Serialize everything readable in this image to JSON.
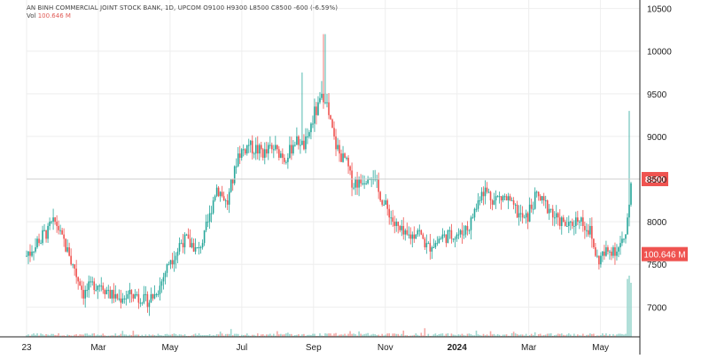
{
  "legend": {
    "title": "AN BINH COMMERCIAL JOINT STOCK BANK, 1D, UPCOM  O9100  H9300  L8500  C8500  -600 (-6.59%)",
    "volume_label": "Vol",
    "volume_value": "100.646 M"
  },
  "colors": {
    "up": "#26a69a",
    "down": "#ef5350",
    "grid": "#eeeeee",
    "price_badge": "#ef5350",
    "axis_text": "#222222"
  },
  "chart_data": {
    "type": "candlestick",
    "title": "AN BINH COMMERCIAL JOINT STOCK BANK, 1D, UPCOM",
    "ylim": [
      6650,
      10600
    ],
    "yticks": [
      7000,
      7500,
      8000,
      8500,
      9000,
      9500,
      10000,
      10500
    ],
    "ytick_labels": [
      "7000",
      "7500",
      "8000",
      "8500",
      "9000",
      "9500",
      "10000",
      "10500"
    ],
    "xticks": [
      {
        "label": "23",
        "month": 0
      },
      {
        "label": "Mar",
        "month": 2
      },
      {
        "label": "May",
        "month": 4
      },
      {
        "label": "Jul",
        "month": 6
      },
      {
        "label": "Sep",
        "month": 8
      },
      {
        "label": "Nov",
        "month": 10
      },
      {
        "label": "2024",
        "month": 12
      },
      {
        "label": "Mar",
        "month": 14
      },
      {
        "label": "May",
        "month": 16
      }
    ],
    "x_end_month": 16.85,
    "last_price": 8500,
    "last_price_label": "8500",
    "volume_badge_label": "100.646 M",
    "volume_badge_value": 7620,
    "close_path": [
      [
        0.0,
        7600
      ],
      [
        0.5,
        7850
      ],
      [
        0.8,
        8000
      ],
      [
        1.2,
        7600
      ],
      [
        1.6,
        7150
      ],
      [
        2.0,
        7300
      ],
      [
        2.5,
        7100
      ],
      [
        3.0,
        7150
      ],
      [
        3.4,
        7050
      ],
      [
        3.7,
        7250
      ],
      [
        4.0,
        7550
      ],
      [
        4.4,
        7800
      ],
      [
        4.8,
        7650
      ],
      [
        5.0,
        7900
      ],
      [
        5.3,
        8400
      ],
      [
        5.6,
        8200
      ],
      [
        5.9,
        8800
      ],
      [
        6.2,
        8900
      ],
      [
        6.6,
        8800
      ],
      [
        6.9,
        8850
      ],
      [
        7.2,
        8750
      ],
      [
        7.5,
        8950
      ],
      [
        7.8,
        8900
      ],
      [
        8.0,
        9250
      ],
      [
        8.3,
        9500
      ],
      [
        8.6,
        8900
      ],
      [
        8.9,
        8700
      ],
      [
        9.1,
        8450
      ],
      [
        9.4,
        8500
      ],
      [
        9.6,
        8600
      ],
      [
        9.9,
        8250
      ],
      [
        10.3,
        7950
      ],
      [
        10.6,
        7800
      ],
      [
        10.9,
        7900
      ],
      [
        11.2,
        7700
      ],
      [
        11.5,
        7800
      ],
      [
        11.8,
        7850
      ],
      [
        12.1,
        7850
      ],
      [
        12.4,
        8000
      ],
      [
        12.7,
        8400
      ],
      [
        13.0,
        8250
      ],
      [
        13.3,
        8300
      ],
      [
        13.6,
        8150
      ],
      [
        13.9,
        8000
      ],
      [
        14.2,
        8300
      ],
      [
        14.5,
        8200
      ],
      [
        14.8,
        8000
      ],
      [
        15.1,
        7950
      ],
      [
        15.4,
        8050
      ],
      [
        15.7,
        7900
      ],
      [
        15.9,
        7550
      ],
      [
        16.2,
        7650
      ],
      [
        16.5,
        7700
      ],
      [
        16.7,
        7800
      ],
      [
        16.85,
        8500
      ]
    ],
    "spikes": [
      {
        "month": 8.3,
        "high": 10200
      },
      {
        "month": 8.25,
        "high": 9650
      },
      {
        "month": 7.7,
        "high": 9750
      },
      {
        "month": 16.8,
        "high": 9300
      }
    ]
  }
}
